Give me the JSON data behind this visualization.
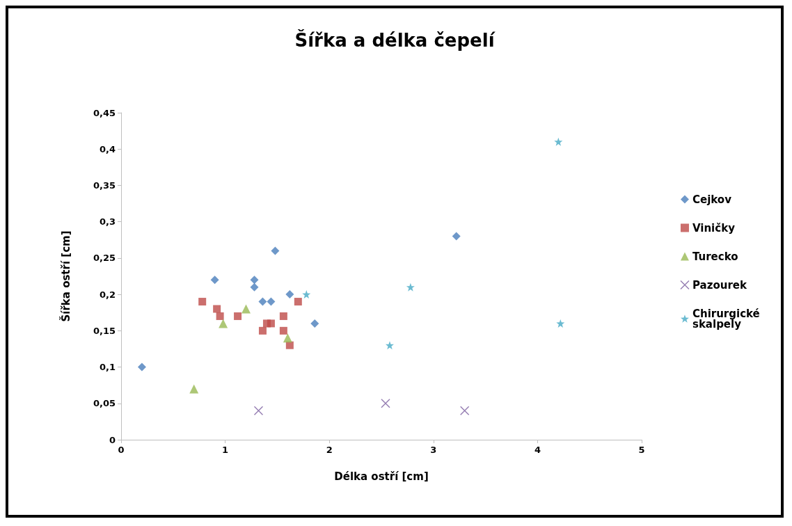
{
  "chart_data": {
    "type": "scatter",
    "title": "Šířka a délka čepelí",
    "xlabel": "Délka ostří [cm]",
    "ylabel": "Šířka ostří [cm]",
    "xlim": [
      0,
      5
    ],
    "xticks": [
      0,
      1,
      2,
      3,
      4,
      5
    ],
    "ylim": [
      0,
      0.45
    ],
    "yticks": [
      0,
      {
        "value": 0.05,
        "label": "0,05"
      },
      {
        "value": 0.1,
        "label": "0,1"
      },
      {
        "value": 0.15,
        "label": "0,15"
      },
      {
        "value": 0.2,
        "label": "0,2"
      },
      {
        "value": 0.25,
        "label": "0,25"
      },
      {
        "value": 0.3,
        "label": "0,3"
      },
      {
        "value": 0.35,
        "label": "0,35"
      },
      {
        "value": 0.4,
        "label": "0,4"
      },
      {
        "value": 0.45,
        "label": "0,45"
      }
    ],
    "grid": false,
    "legend": "right",
    "series": [
      {
        "name": "Cejkov",
        "color": "#4a7ebb",
        "marker": "diamond",
        "x": [
          0.2,
          0.9,
          1.28,
          1.28,
          1.48,
          1.36,
          1.44,
          1.62,
          1.86,
          3.22
        ],
        "values": [
          0.1,
          0.22,
          0.22,
          0.21,
          0.26,
          0.19,
          0.19,
          0.2,
          0.16,
          0.28
        ]
      },
      {
        "name": "Viničky",
        "color": "#be4b48",
        "marker": "square",
        "x": [
          0.78,
          0.92,
          0.95,
          1.12,
          1.36,
          1.4,
          1.44,
          1.56,
          1.56,
          1.62,
          1.7
        ],
        "values": [
          0.19,
          0.18,
          0.17,
          0.17,
          0.15,
          0.16,
          0.16,
          0.17,
          0.15,
          0.13,
          0.19
        ]
      },
      {
        "name": "Turecko",
        "color": "#98b954",
        "marker": "triangle",
        "x": [
          0.7,
          0.98,
          1.2,
          1.6
        ],
        "values": [
          0.07,
          0.16,
          0.18,
          0.14
        ]
      },
      {
        "name": "Pazourek",
        "color": "#7d60a0",
        "marker": "cross",
        "x": [
          1.32,
          2.54,
          3.3
        ],
        "values": [
          0.04,
          0.05,
          0.04
        ]
      },
      {
        "name": "Chirurgické skalpely",
        "color": "#46aac5",
        "marker": "star",
        "x": [
          1.78,
          2.58,
          2.78,
          4.2,
          4.22
        ],
        "values": [
          0.2,
          0.13,
          0.21,
          0.41,
          0.16
        ]
      }
    ]
  }
}
